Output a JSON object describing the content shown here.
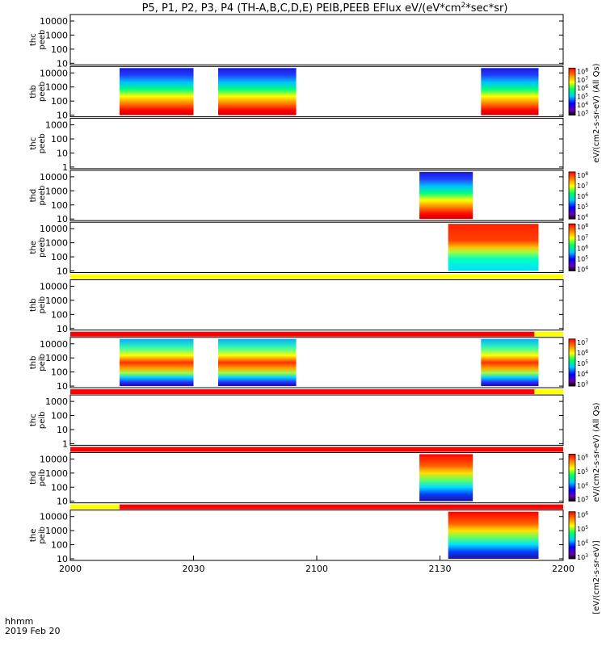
{
  "chart_data": {
    "type": "heatmap",
    "title": "P5, P1, P2, P3, P4 (TH-A,B,C,D,E) PEIB,PEEB EFlux eV/(eV*cm",
    "title_sup": "2",
    "title_tail": "*sec*sr)",
    "time_label": "hhmm",
    "date_label": "2019 Feb 20",
    "x_ticks": [
      "2000",
      "2030",
      "2100",
      "2130",
      "2200"
    ],
    "x_range_minutes": [
      0,
      120
    ],
    "colorbar_unit": "eV/(cm2-s-sr-eV) (All Qs)",
    "colorbar_unit_alt": "[eV/(cm2-s-sr-eV)]",
    "panels": [
      {
        "label1": "thc",
        "label2": "peeb",
        "y_ticks": [
          "10000",
          "1000",
          "100",
          "10"
        ],
        "blocks": [],
        "colorbar": null
      },
      {
        "label1": "thb",
        "label2": "peeb",
        "y_ticks": [
          "10000",
          "1000",
          "100",
          "10"
        ],
        "blocks": [
          [
            12,
            30,
            "hot-e"
          ],
          [
            36,
            55,
            "hot-e"
          ],
          [
            100,
            114,
            "hot-e"
          ]
        ],
        "colorbar": [
          "10^8",
          "10^7",
          "10^6",
          "10^5",
          "10^4",
          "10^3"
        ]
      },
      {
        "label1": "thc",
        "label2": "peeb",
        "y_ticks": [
          "1000",
          "100",
          "10",
          "1"
        ],
        "blocks": [],
        "colorbar": null
      },
      {
        "label1": "thd",
        "label2": "peeb",
        "y_ticks": [
          "10000",
          "1000",
          "100",
          "10"
        ],
        "blocks": [
          [
            85,
            98,
            "hot-e"
          ]
        ],
        "colorbar": [
          "10^8",
          "10^7",
          "10^6",
          "10^5",
          "10^4"
        ]
      },
      {
        "label1": "the",
        "label2": "peeb",
        "y_ticks": [
          "10000",
          "1000",
          "100",
          "10"
        ],
        "blocks": [
          [
            92,
            114,
            "hot-e2"
          ]
        ],
        "colorbar": [
          "10^8",
          "10^7",
          "10^6",
          "10^5",
          "10^4"
        ]
      },
      {
        "label1": "thb",
        "label2": "peib",
        "y_ticks": [
          "10000",
          "1000",
          "100",
          "10"
        ],
        "blocks": [],
        "colorbar": null
      },
      {
        "label1": "thb",
        "label2": "peib",
        "y_ticks": [
          "10000",
          "1000",
          "100",
          "10"
        ],
        "blocks": [
          [
            12,
            30,
            "ion"
          ],
          [
            36,
            55,
            "ion"
          ],
          [
            100,
            114,
            "ion"
          ]
        ],
        "colorbar": [
          "10^7",
          "10^6",
          "10^5",
          "10^4",
          "10^3"
        ]
      },
      {
        "label1": "thc",
        "label2": "peib",
        "y_ticks": [
          "1000",
          "100",
          "10",
          "1"
        ],
        "blocks": [],
        "colorbar": null
      },
      {
        "label1": "thd",
        "label2": "peib",
        "y_ticks": [
          "10000",
          "1000",
          "100",
          "10"
        ],
        "blocks": [
          [
            85,
            98,
            "ion2"
          ]
        ],
        "colorbar": [
          "10^6",
          "10^5",
          "10^4",
          "10^3"
        ]
      },
      {
        "label1": "the",
        "label2": "peib",
        "y_ticks": [
          "10000",
          "1000",
          "100",
          "10"
        ],
        "blocks": [
          [
            92,
            114,
            "ion2"
          ]
        ],
        "colorbar": [
          "10^6",
          "10^5",
          "10^4",
          "10^3"
        ]
      }
    ],
    "status_bars": [
      {
        "after_panel": 4,
        "segments": [
          [
            0,
            120,
            "#ffff00"
          ]
        ]
      },
      {
        "after_panel": 5,
        "segments": [
          [
            0,
            113,
            "#ff0000"
          ],
          [
            113,
            120,
            "#ffff00"
          ]
        ]
      },
      {
        "after_panel": 6,
        "segments": [
          [
            0,
            113,
            "#ff0000"
          ],
          [
            113,
            120,
            "#ffff00"
          ]
        ]
      },
      {
        "after_panel": 7,
        "segments": [
          [
            0,
            120,
            "#ff0000"
          ]
        ]
      },
      {
        "after_panel": 8,
        "segments": [
          [
            0,
            12,
            "#ffff00"
          ],
          [
            12,
            120,
            "#ff0000"
          ]
        ]
      }
    ]
  }
}
